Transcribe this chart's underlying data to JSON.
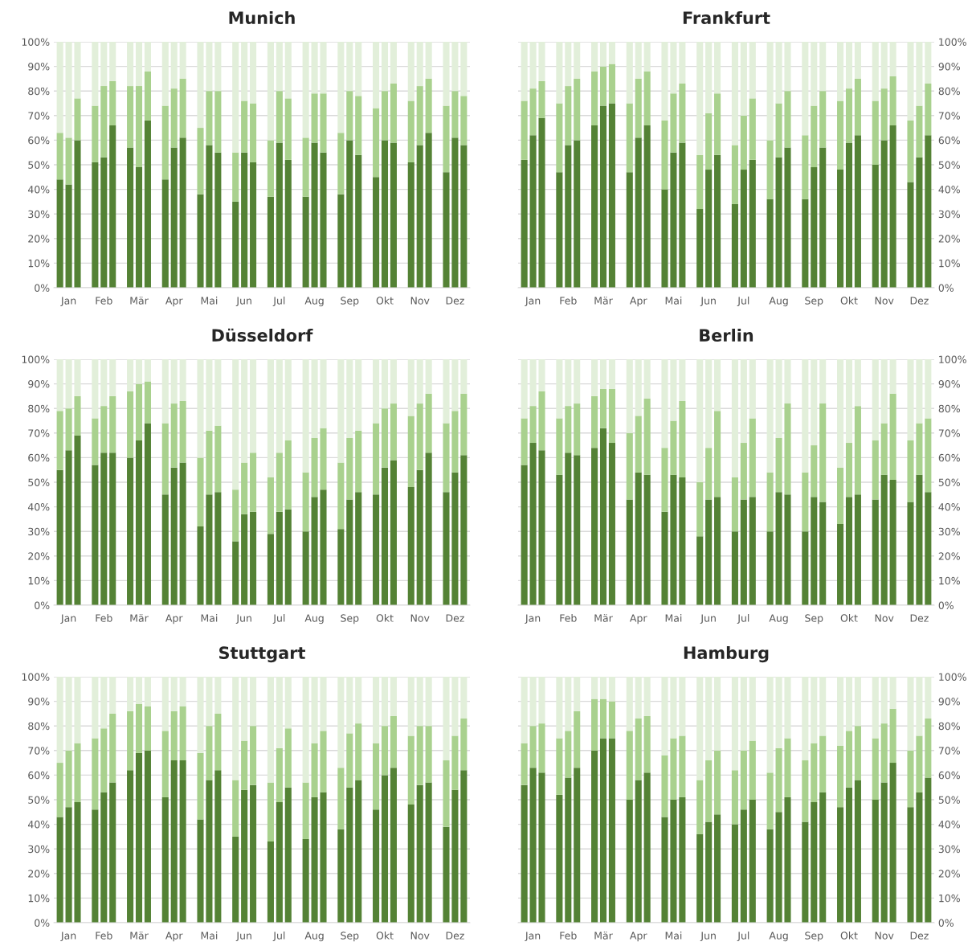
{
  "chart_data": [
    {
      "type": "bar",
      "title": "Munich",
      "stacked": true,
      "grid": "y",
      "categories": [
        null,
        "Jan",
        null,
        null,
        null,
        "Feb",
        null,
        null,
        null,
        "Mär",
        null,
        null,
        null,
        "Apr",
        null,
        null,
        null,
        "Mai",
        null,
        null,
        null,
        "Jun",
        null,
        null,
        null,
        "Jul",
        null,
        null,
        null,
        "Aug",
        null,
        null,
        null,
        "Sep",
        null,
        null,
        null,
        "Okt",
        null,
        null,
        null,
        "Nov",
        null,
        null,
        null,
        "Dez",
        null
      ],
      "ylim": [
        0,
        100
      ],
      "yticks": [
        {
          "value": 0,
          "label": "0%"
        },
        {
          "value": 10,
          "label": "10%"
        },
        {
          "value": 20,
          "label": "20%"
        },
        {
          "value": 30,
          "label": "30%"
        },
        {
          "value": 40,
          "label": "40%"
        },
        {
          "value": 50,
          "label": "50%"
        },
        {
          "value": 60,
          "label": "60%"
        },
        {
          "value": 70,
          "label": "70%"
        },
        {
          "value": 80,
          "label": "80%"
        },
        {
          "value": 90,
          "label": "90%"
        },
        {
          "value": 100,
          "label": "100%"
        }
      ],
      "series": [
        {
          "color": "#548235",
          "values": [
            44,
            42,
            60,
            null,
            51,
            53,
            66,
            null,
            57,
            49,
            68,
            null,
            44,
            57,
            61,
            null,
            38,
            58,
            55,
            null,
            35,
            55,
            51,
            null,
            37,
            59,
            52,
            null,
            37,
            59,
            55,
            null,
            38,
            60,
            54,
            null,
            45,
            60,
            59,
            null,
            51,
            58,
            63,
            null,
            47,
            61,
            58
          ]
        },
        {
          "color": "#a9d18e",
          "values": [
            19,
            19,
            17,
            null,
            23,
            29,
            18,
            null,
            25,
            33,
            20,
            null,
            30,
            24,
            24,
            null,
            27,
            22,
            25,
            null,
            20,
            21,
            24,
            null,
            23,
            21,
            25,
            null,
            24,
            20,
            24,
            null,
            25,
            20,
            24,
            null,
            28,
            20,
            24,
            null,
            25,
            24,
            22,
            null,
            27,
            19,
            20
          ]
        },
        {
          "color": "#e2efda",
          "values": [
            37,
            39,
            23,
            null,
            26,
            18,
            16,
            null,
            18,
            18,
            12,
            null,
            26,
            19,
            15,
            null,
            35,
            20,
            20,
            null,
            45,
            24,
            25,
            null,
            40,
            20,
            23,
            null,
            39,
            21,
            21,
            null,
            37,
            20,
            22,
            null,
            27,
            20,
            17,
            null,
            24,
            18,
            15,
            null,
            26,
            20,
            22
          ]
        }
      ]
    },
    {
      "type": "bar",
      "title": "Frankfurt",
      "stacked": true,
      "grid": "y",
      "categories": [
        null,
        "Jan",
        null,
        null,
        null,
        "Feb",
        null,
        null,
        null,
        "Mär",
        null,
        null,
        null,
        "Apr",
        null,
        null,
        null,
        "Mai",
        null,
        null,
        null,
        "Jun",
        null,
        null,
        null,
        "Jul",
        null,
        null,
        null,
        "Aug",
        null,
        null,
        null,
        "Sep",
        null,
        null,
        null,
        "Okt",
        null,
        null,
        null,
        "Nov",
        null,
        null,
        null,
        "Dez",
        null
      ],
      "y2lim": [
        0,
        100
      ],
      "y2ticks": [
        {
          "value": 0,
          "label": "0%"
        },
        {
          "value": 10,
          "label": "10%"
        },
        {
          "value": 20,
          "label": "20%"
        },
        {
          "value": 30,
          "label": "30%"
        },
        {
          "value": 40,
          "label": "40%"
        },
        {
          "value": 50,
          "label": "50%"
        },
        {
          "value": 60,
          "label": "60%"
        },
        {
          "value": 70,
          "label": "70%"
        },
        {
          "value": 80,
          "label": "80%"
        },
        {
          "value": 90,
          "label": "90%"
        },
        {
          "value": 100,
          "label": "100%"
        }
      ],
      "series": [
        {
          "color": "#548235",
          "axis": "y2",
          "values": [
            52,
            62,
            69,
            null,
            47,
            58,
            60,
            null,
            66,
            74,
            75,
            null,
            47,
            61,
            66,
            null,
            40,
            55,
            59,
            null,
            32,
            48,
            54,
            null,
            34,
            48,
            52,
            null,
            36,
            53,
            57,
            null,
            36,
            49,
            57,
            null,
            48,
            59,
            62,
            null,
            50,
            60,
            66,
            null,
            43,
            53,
            62
          ]
        },
        {
          "color": "#a9d18e",
          "axis": "y2",
          "values": [
            24,
            19,
            15,
            null,
            28,
            24,
            25,
            null,
            22,
            16,
            16,
            null,
            28,
            24,
            22,
            null,
            28,
            24,
            24,
            null,
            22,
            23,
            25,
            null,
            24,
            22,
            25,
            null,
            24,
            22,
            23,
            null,
            26,
            25,
            23,
            null,
            28,
            22,
            23,
            null,
            26,
            21,
            20,
            null,
            25,
            21,
            21
          ]
        },
        {
          "color": "#e2efda",
          "axis": "y2",
          "values": [
            24,
            19,
            16,
            null,
            25,
            18,
            15,
            null,
            12,
            10,
            9,
            null,
            25,
            15,
            12,
            null,
            32,
            21,
            17,
            null,
            46,
            29,
            21,
            null,
            42,
            30,
            23,
            null,
            40,
            25,
            20,
            null,
            38,
            26,
            20,
            null,
            24,
            19,
            15,
            null,
            24,
            19,
            14,
            null,
            32,
            26,
            17
          ]
        }
      ]
    },
    {
      "type": "bar",
      "title": "Düsseldorf",
      "stacked": true,
      "grid": "y",
      "categories": [
        null,
        "Jan",
        null,
        null,
        null,
        "Feb",
        null,
        null,
        null,
        "Mär",
        null,
        null,
        null,
        "Apr",
        null,
        null,
        null,
        "Mai",
        null,
        null,
        null,
        "Jun",
        null,
        null,
        null,
        "Jul",
        null,
        null,
        null,
        "Aug",
        null,
        null,
        null,
        "Sep",
        null,
        null,
        null,
        "Okt",
        null,
        null,
        null,
        "Nov",
        null,
        null,
        null,
        "Dez",
        null
      ],
      "ylim": [
        0,
        100
      ],
      "yticks": [
        {
          "value": 0,
          "label": "0%"
        },
        {
          "value": 10,
          "label": "10%"
        },
        {
          "value": 20,
          "label": "20%"
        },
        {
          "value": 30,
          "label": "30%"
        },
        {
          "value": 40,
          "label": "40%"
        },
        {
          "value": 50,
          "label": "50%"
        },
        {
          "value": 60,
          "label": "60%"
        },
        {
          "value": 70,
          "label": "70%"
        },
        {
          "value": 80,
          "label": "80%"
        },
        {
          "value": 90,
          "label": "90%"
        },
        {
          "value": 100,
          "label": "100%"
        }
      ],
      "series": [
        {
          "color": "#548235",
          "values": [
            55,
            63,
            69,
            null,
            57,
            62,
            62,
            null,
            60,
            67,
            74,
            null,
            45,
            56,
            58,
            null,
            32,
            45,
            46,
            null,
            26,
            37,
            38,
            null,
            29,
            38,
            39,
            null,
            30,
            44,
            47,
            null,
            31,
            43,
            46,
            null,
            45,
            56,
            59,
            null,
            48,
            55,
            62,
            null,
            46,
            54,
            61
          ]
        },
        {
          "color": "#a9d18e",
          "values": [
            24,
            17,
            16,
            null,
            19,
            19,
            23,
            null,
            27,
            23,
            17,
            null,
            29,
            26,
            25,
            null,
            28,
            26,
            27,
            null,
            21,
            21,
            24,
            null,
            23,
            24,
            28,
            null,
            24,
            24,
            25,
            null,
            27,
            25,
            25,
            null,
            29,
            24,
            23,
            null,
            29,
            27,
            24,
            null,
            28,
            25,
            25
          ]
        },
        {
          "color": "#e2efda",
          "values": [
            21,
            20,
            15,
            null,
            24,
            19,
            15,
            null,
            13,
            10,
            9,
            null,
            26,
            18,
            17,
            null,
            40,
            29,
            27,
            null,
            53,
            42,
            38,
            null,
            48,
            38,
            33,
            null,
            46,
            32,
            28,
            null,
            42,
            32,
            29,
            null,
            26,
            20,
            18,
            null,
            23,
            18,
            14,
            null,
            26,
            21,
            14
          ]
        }
      ]
    },
    {
      "type": "bar",
      "title": "Berlin",
      "stacked": true,
      "grid": "y",
      "categories": [
        null,
        "Jan",
        null,
        null,
        null,
        "Feb",
        null,
        null,
        null,
        "Mär",
        null,
        null,
        null,
        "Apr",
        null,
        null,
        null,
        "Mai",
        null,
        null,
        null,
        "Jun",
        null,
        null,
        null,
        "Jul",
        null,
        null,
        null,
        "Aug",
        null,
        null,
        null,
        "Sep",
        null,
        null,
        null,
        "Okt",
        null,
        null,
        null,
        "Nov",
        null,
        null,
        null,
        "Dez",
        null
      ],
      "y2lim": [
        0,
        100
      ],
      "y2ticks": [
        {
          "value": 0,
          "label": "0%"
        },
        {
          "value": 10,
          "label": "10%"
        },
        {
          "value": 20,
          "label": "20%"
        },
        {
          "value": 30,
          "label": "30%"
        },
        {
          "value": 40,
          "label": "40%"
        },
        {
          "value": 50,
          "label": "50%"
        },
        {
          "value": 60,
          "label": "60%"
        },
        {
          "value": 70,
          "label": "70%"
        },
        {
          "value": 80,
          "label": "80%"
        },
        {
          "value": 90,
          "label": "90%"
        },
        {
          "value": 100,
          "label": "100%"
        }
      ],
      "series": [
        {
          "color": "#548235",
          "axis": "y2",
          "values": [
            57,
            66,
            63,
            null,
            53,
            62,
            61,
            null,
            64,
            72,
            66,
            null,
            43,
            54,
            53,
            null,
            38,
            53,
            52,
            null,
            28,
            43,
            44,
            null,
            30,
            43,
            44,
            null,
            30,
            46,
            45,
            null,
            30,
            44,
            42,
            null,
            33,
            44,
            45,
            null,
            43,
            53,
            51,
            null,
            42,
            53,
            46
          ]
        },
        {
          "color": "#a9d18e",
          "axis": "y2",
          "values": [
            19,
            15,
            24,
            null,
            23,
            19,
            21,
            null,
            21,
            16,
            22,
            null,
            27,
            23,
            31,
            null,
            26,
            22,
            31,
            null,
            22,
            21,
            35,
            null,
            22,
            23,
            32,
            null,
            24,
            22,
            37,
            null,
            24,
            21,
            40,
            null,
            23,
            22,
            36,
            null,
            24,
            21,
            35,
            null,
            25,
            21,
            30
          ]
        },
        {
          "color": "#e2efda",
          "axis": "y2",
          "values": [
            24,
            19,
            13,
            null,
            24,
            19,
            18,
            null,
            15,
            12,
            12,
            null,
            30,
            23,
            16,
            null,
            36,
            25,
            17,
            null,
            50,
            36,
            21,
            null,
            48,
            34,
            24,
            null,
            46,
            32,
            18,
            null,
            46,
            35,
            18,
            null,
            44,
            34,
            19,
            null,
            33,
            26,
            14,
            null,
            33,
            26,
            24
          ]
        }
      ]
    },
    {
      "type": "bar",
      "title": "Stuttgart",
      "stacked": true,
      "grid": "y",
      "categories": [
        null,
        "Jan",
        null,
        null,
        null,
        "Feb",
        null,
        null,
        null,
        "Mär",
        null,
        null,
        null,
        "Apr",
        null,
        null,
        null,
        "Mai",
        null,
        null,
        null,
        "Jun",
        null,
        null,
        null,
        "Jul",
        null,
        null,
        null,
        "Aug",
        null,
        null,
        null,
        "Sep",
        null,
        null,
        null,
        "Okt",
        null,
        null,
        null,
        "Nov",
        null,
        null,
        null,
        "Dez",
        null
      ],
      "ylim": [
        0,
        100
      ],
      "yticks": [
        {
          "value": 0,
          "label": "0%"
        },
        {
          "value": 10,
          "label": "10%"
        },
        {
          "value": 20,
          "label": "20%"
        },
        {
          "value": 30,
          "label": "30%"
        },
        {
          "value": 40,
          "label": "40%"
        },
        {
          "value": 50,
          "label": "50%"
        },
        {
          "value": 60,
          "label": "60%"
        },
        {
          "value": 70,
          "label": "70%"
        },
        {
          "value": 80,
          "label": "80%"
        },
        {
          "value": 90,
          "label": "90%"
        },
        {
          "value": 100,
          "label": "100%"
        }
      ],
      "series": [
        {
          "color": "#548235",
          "values": [
            43,
            47,
            49,
            null,
            46,
            53,
            57,
            null,
            62,
            69,
            70,
            null,
            51,
            66,
            66,
            null,
            42,
            58,
            62,
            null,
            35,
            54,
            56,
            null,
            33,
            49,
            55,
            null,
            34,
            51,
            53,
            null,
            38,
            55,
            58,
            null,
            46,
            60,
            63,
            null,
            48,
            56,
            57,
            null,
            39,
            54,
            62
          ]
        },
        {
          "color": "#a9d18e",
          "values": [
            22,
            23,
            24,
            null,
            29,
            26,
            28,
            null,
            24,
            20,
            18,
            null,
            27,
            20,
            22,
            null,
            27,
            22,
            23,
            null,
            23,
            20,
            24,
            null,
            24,
            22,
            24,
            null,
            23,
            22,
            25,
            null,
            25,
            22,
            23,
            null,
            27,
            20,
            21,
            null,
            28,
            24,
            23,
            null,
            27,
            22,
            21
          ]
        },
        {
          "color": "#e2efda",
          "values": [
            35,
            30,
            27,
            null,
            25,
            21,
            15,
            null,
            14,
            11,
            12,
            null,
            22,
            14,
            12,
            null,
            31,
            20,
            15,
            null,
            42,
            26,
            20,
            null,
            43,
            29,
            21,
            null,
            43,
            27,
            22,
            null,
            37,
            23,
            19,
            null,
            27,
            20,
            16,
            null,
            24,
            20,
            20,
            null,
            34,
            24,
            17
          ]
        }
      ]
    },
    {
      "type": "bar",
      "title": "Hamburg",
      "stacked": true,
      "grid": "y",
      "categories": [
        null,
        "Jan",
        null,
        null,
        null,
        "Feb",
        null,
        null,
        null,
        "Mär",
        null,
        null,
        null,
        "Apr",
        null,
        null,
        null,
        "Mai",
        null,
        null,
        null,
        "Jun",
        null,
        null,
        null,
        "Jul",
        null,
        null,
        null,
        "Aug",
        null,
        null,
        null,
        "Sep",
        null,
        null,
        null,
        "Okt",
        null,
        null,
        null,
        "Nov",
        null,
        null,
        null,
        "Dez",
        null
      ],
      "y2lim": [
        0,
        100
      ],
      "y2ticks": [
        {
          "value": 0,
          "label": "0%"
        },
        {
          "value": 10,
          "label": "10%"
        },
        {
          "value": 20,
          "label": "20%"
        },
        {
          "value": 30,
          "label": "30%"
        },
        {
          "value": 40,
          "label": "40%"
        },
        {
          "value": 50,
          "label": "50%"
        },
        {
          "value": 60,
          "label": "60%"
        },
        {
          "value": 70,
          "label": "70%"
        },
        {
          "value": 80,
          "label": "80%"
        },
        {
          "value": 90,
          "label": "90%"
        },
        {
          "value": 100,
          "label": "100%"
        }
      ],
      "series": [
        {
          "color": "#548235",
          "axis": "y2",
          "values": [
            56,
            63,
            61,
            null,
            52,
            59,
            63,
            null,
            70,
            75,
            75,
            null,
            50,
            58,
            61,
            null,
            43,
            50,
            51,
            null,
            36,
            41,
            44,
            null,
            40,
            46,
            50,
            null,
            38,
            45,
            51,
            null,
            41,
            49,
            53,
            null,
            47,
            55,
            58,
            null,
            50,
            57,
            65,
            null,
            47,
            53,
            59
          ]
        },
        {
          "color": "#a9d18e",
          "axis": "y2",
          "values": [
            17,
            17,
            20,
            null,
            23,
            19,
            23,
            null,
            21,
            16,
            15,
            null,
            28,
            25,
            23,
            null,
            25,
            25,
            25,
            null,
            22,
            25,
            26,
            null,
            22,
            24,
            24,
            null,
            23,
            26,
            24,
            null,
            25,
            24,
            23,
            null,
            25,
            23,
            22,
            null,
            25,
            24,
            22,
            null,
            23,
            23,
            24
          ]
        },
        {
          "color": "#e2efda",
          "axis": "y2",
          "values": [
            27,
            20,
            19,
            null,
            25,
            22,
            14,
            null,
            9,
            9,
            10,
            null,
            22,
            17,
            16,
            null,
            32,
            25,
            24,
            null,
            42,
            34,
            30,
            null,
            38,
            30,
            26,
            null,
            39,
            29,
            25,
            null,
            34,
            27,
            24,
            null,
            28,
            22,
            20,
            null,
            25,
            19,
            13,
            null,
            30,
            24,
            17
          ]
        }
      ]
    }
  ]
}
